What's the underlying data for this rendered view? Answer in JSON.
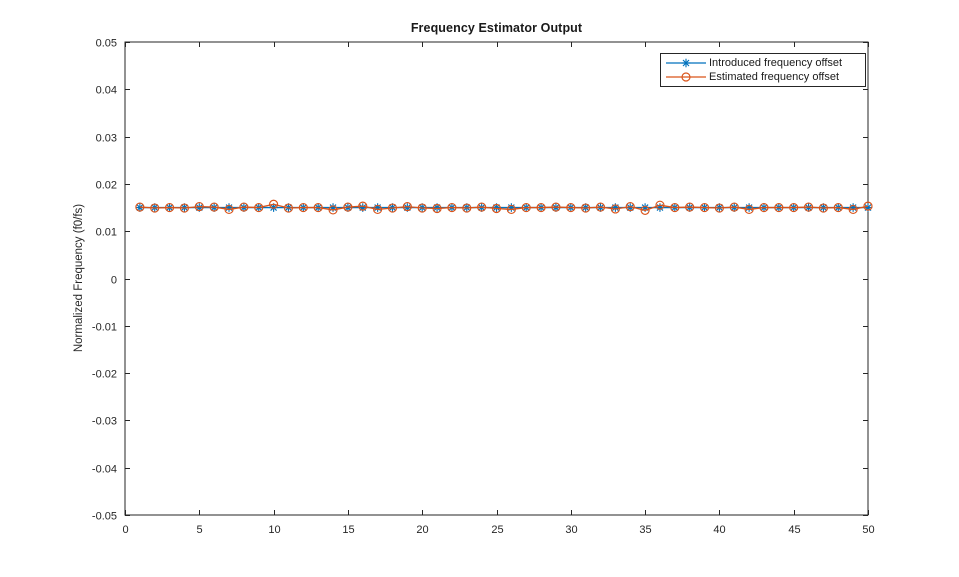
{
  "figure": {
    "background": "#ffffff",
    "axis_color": "#262626",
    "text_color": "#262626"
  },
  "chart_data": {
    "type": "line",
    "title": "Frequency Estimator Output",
    "xlabel": "",
    "ylabel": "Normalized Frequency (f0/fs)",
    "xlim": [
      0,
      50
    ],
    "ylim": [
      -0.05,
      0.05
    ],
    "xticks": [
      0,
      5,
      10,
      15,
      20,
      25,
      30,
      35,
      40,
      45,
      50
    ],
    "yticks": [
      -0.05,
      -0.04,
      -0.03,
      -0.02,
      -0.01,
      0,
      0.01,
      0.02,
      0.03,
      0.04,
      0.05
    ],
    "grid": false,
    "legend_position": "top-right",
    "x": [
      1,
      2,
      3,
      4,
      5,
      6,
      7,
      8,
      9,
      10,
      11,
      12,
      13,
      14,
      15,
      16,
      17,
      18,
      19,
      20,
      21,
      22,
      23,
      24,
      25,
      26,
      27,
      28,
      29,
      30,
      31,
      32,
      33,
      34,
      35,
      36,
      37,
      38,
      39,
      40,
      41,
      42,
      43,
      44,
      45,
      46,
      47,
      48,
      49,
      50
    ],
    "series": [
      {
        "name": "Introduced frequency offset",
        "color": "#0072BD",
        "marker": "asterisk",
        "values": [
          0.015,
          0.015,
          0.015,
          0.015,
          0.015,
          0.015,
          0.015,
          0.015,
          0.015,
          0.015,
          0.015,
          0.015,
          0.015,
          0.015,
          0.015,
          0.015,
          0.015,
          0.015,
          0.015,
          0.015,
          0.015,
          0.015,
          0.015,
          0.015,
          0.015,
          0.015,
          0.015,
          0.015,
          0.015,
          0.015,
          0.015,
          0.015,
          0.015,
          0.015,
          0.015,
          0.015,
          0.015,
          0.015,
          0.015,
          0.015,
          0.015,
          0.015,
          0.015,
          0.015,
          0.015,
          0.015,
          0.015,
          0.015,
          0.015,
          0.015
        ]
      },
      {
        "name": "Estimated frequency offset",
        "color": "#D95319",
        "marker": "circle",
        "values": [
          0.0151,
          0.0149,
          0.015,
          0.0149,
          0.0152,
          0.0151,
          0.0146,
          0.0151,
          0.015,
          0.0157,
          0.0149,
          0.015,
          0.015,
          0.0145,
          0.0151,
          0.0153,
          0.0146,
          0.0149,
          0.0152,
          0.0149,
          0.0148,
          0.015,
          0.0149,
          0.0151,
          0.0148,
          0.0146,
          0.015,
          0.015,
          0.0151,
          0.015,
          0.0149,
          0.0151,
          0.0147,
          0.0152,
          0.0144,
          0.0155,
          0.015,
          0.0151,
          0.015,
          0.0149,
          0.0151,
          0.0146,
          0.015,
          0.015,
          0.015,
          0.0151,
          0.0149,
          0.015,
          0.0146,
          0.0153
        ]
      }
    ]
  }
}
